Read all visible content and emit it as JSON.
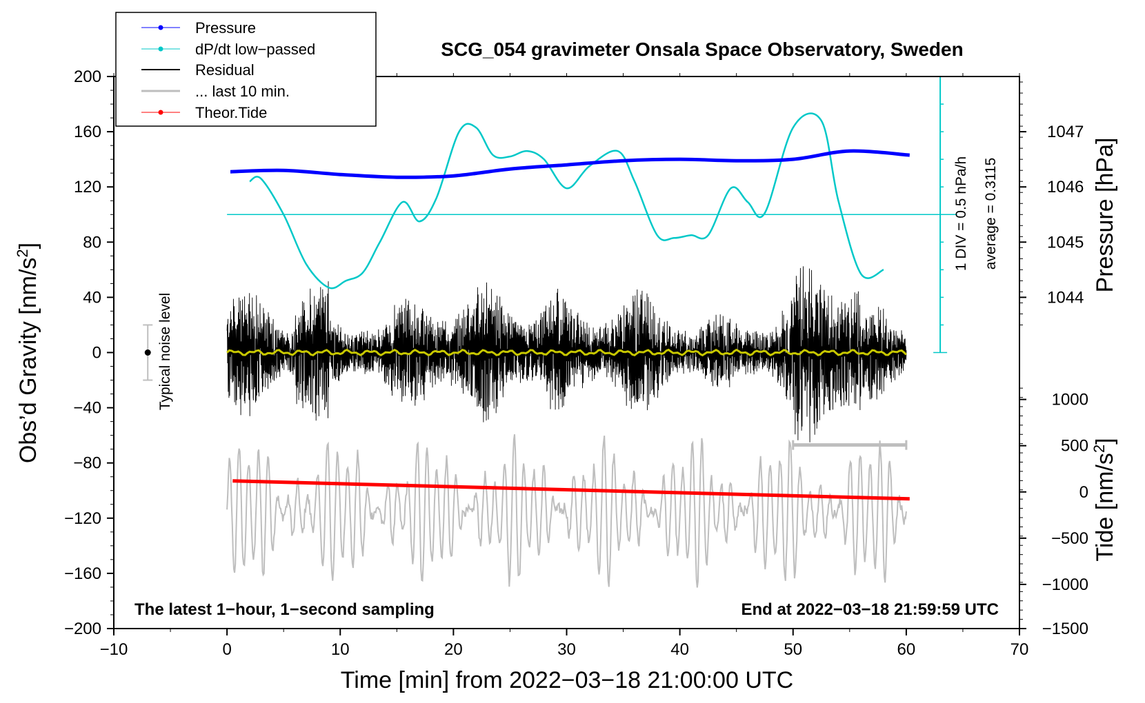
{
  "chart_data": {
    "type": "line",
    "title": "SCG_054 gravimeter Onsala Space Observatory, Sweden",
    "xlabel": "Time [min] from 2022−03−18 21:00:00 UTC",
    "ylabel": "Obs’d Gravity [nm/s",
    "ylabel_sup": "2",
    "ylabel_end": "]",
    "y2label": "Pressure [hPa]",
    "y3label": "Tide [nm/s",
    "y3label_sup": "2",
    "y3label_end": "]",
    "xlim": [
      -10,
      70
    ],
    "ylim": [
      -200,
      200
    ],
    "x_ticks": [
      -10,
      0,
      10,
      20,
      30,
      40,
      50,
      60,
      70
    ],
    "x_tick_labels": [
      "−10",
      "0",
      "10",
      "20",
      "30",
      "40",
      "50",
      "60",
      "70"
    ],
    "y_ticks": [
      200,
      160,
      120,
      80,
      40,
      0,
      -40,
      -80,
      -120,
      -160,
      -200
    ],
    "y_tick_labels": [
      "200",
      "160",
      "120",
      "80",
      "40",
      "0",
      "−40",
      "−80",
      "−120",
      "−160",
      "−200"
    ],
    "pressure_axis": {
      "ticks": [
        1047,
        1046,
        1045,
        1044
      ],
      "tick_labels": [
        "1047",
        "1046",
        "1045",
        "1044"
      ],
      "gravity_equiv": [
        160,
        120,
        80,
        40
      ]
    },
    "tide_axis": {
      "ticks": [
        1000,
        500,
        0,
        -500,
        -1000,
        -1500
      ],
      "tick_labels": [
        "1000",
        "500",
        "0",
        "−500",
        "−1000",
        "−1500"
      ],
      "gravity_equiv": [
        -34,
        -67.5,
        -101,
        -134.5,
        -168,
        -200
      ]
    },
    "legend": [
      {
        "label": "Pressure",
        "color": "#0000ff",
        "marker": true
      },
      {
        "label": "dP/dt low−passed",
        "color": "#00c8c8",
        "marker": true
      },
      {
        "label": "Residual",
        "color": "#000000",
        "marker": false
      },
      {
        "label": "... last 10 min.",
        "color": "#bebebe",
        "marker": false
      },
      {
        "label": "Theor.Tide",
        "color": "#ff0000",
        "marker": true
      }
    ],
    "series": [
      {
        "name": "Pressure",
        "color": "#0000ff",
        "x": [
          0.3,
          5,
          10,
          15,
          20,
          25,
          30,
          35,
          40,
          45,
          50,
          55,
          60.3
        ],
        "y": [
          131,
          132,
          129,
          127,
          128,
          133,
          136,
          139,
          140,
          139,
          140,
          146,
          143
        ]
      },
      {
        "name": "dP/dt low−passed",
        "color": "#00c8c8",
        "x": [
          2,
          3,
          5,
          7,
          9,
          10.5,
          12,
          13.5,
          15.5,
          17,
          18.5,
          20.5,
          22,
          23.5,
          25,
          26.5,
          28,
          30,
          32,
          34.5,
          36,
          38,
          39.5,
          41,
          42.5,
          44.5,
          46,
          47.5,
          50,
          52.5,
          54,
          56,
          58
        ],
        "y": [
          124,
          126,
          100,
          64,
          47,
          52,
          58,
          80,
          109,
          95,
          112,
          160,
          163,
          143,
          142,
          146,
          140,
          119,
          135,
          146,
          124,
          85,
          83,
          85,
          85,
          119,
          109,
          101,
          163,
          168,
          110,
          57,
          60
        ]
      },
      {
        "name": "Theor.Tide",
        "color": "#ff0000",
        "x": [
          0.5,
          60.3
        ],
        "y": [
          -93,
          -106
        ]
      }
    ],
    "residual": {
      "name": "Residual",
      "color": "#000000",
      "x_start": 0,
      "x_end": 60,
      "typical_amplitude": 40,
      "max_amplitude": 75
    },
    "residual_smoothed": {
      "color": "#c8c800",
      "value": 0
    },
    "last_10_min": {
      "name": "... last 10 min.",
      "color": "#bebebe",
      "x_start": 0,
      "x_end": 60,
      "center": -115,
      "amplitude": 45,
      "bracket_x": [
        50,
        60
      ],
      "bracket_y": -67
    },
    "dpdt_zero_line": {
      "y": 100,
      "color": "#00c8c8"
    },
    "dpdt_scale": {
      "x": 63,
      "y_top": 200,
      "y_bottom": 0,
      "divisions": 10,
      "label1": "1 DIV = 0.5 hPa/h",
      "label2": "average = 0.3115"
    },
    "noise_bar": {
      "x": -7,
      "y": 0,
      "half_height": 20,
      "label": "Typical noise level"
    },
    "annotation_left": "The latest 1−hour, 1−second sampling",
    "annotation_right": "End at 2022−03−18 21:59:59 UTC"
  }
}
